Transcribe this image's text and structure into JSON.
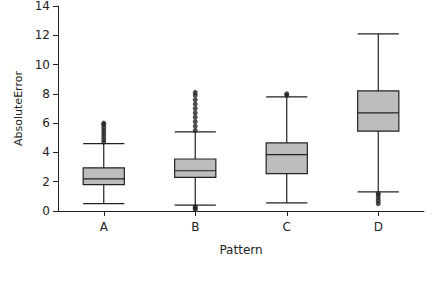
{
  "chart_data": {
    "type": "boxplot",
    "xlabel": "Pattern",
    "ylabel": "AbsoluteError",
    "categories": [
      "A",
      "B",
      "C",
      "D"
    ],
    "boxes": [
      [
        0.5,
        1.8,
        2.2,
        2.95,
        4.6
      ],
      [
        0.4,
        2.3,
        2.75,
        3.55,
        5.4
      ],
      [
        0.55,
        2.55,
        3.85,
        4.65,
        7.8
      ],
      [
        1.3,
        5.45,
        6.7,
        8.2,
        12.1
      ]
    ],
    "outliers": [
      [
        4.7,
        4.9,
        5.1,
        5.3,
        5.5,
        5.7,
        5.9,
        6.0
      ],
      [
        0.1,
        0.2,
        0.3,
        5.5,
        5.8,
        6.1,
        6.4,
        6.7,
        7.0,
        7.3,
        7.6,
        7.9,
        8.1
      ],
      [
        7.9,
        8.0
      ],
      [
        0.5,
        0.7,
        0.9,
        1.1,
        1.2
      ]
    ],
    "color": "#bdbdbd",
    "ylim": [
      0,
      14
    ],
    "yticks": [
      0,
      2,
      4,
      6,
      8,
      10,
      12,
      14
    ],
    "grid": false
  }
}
